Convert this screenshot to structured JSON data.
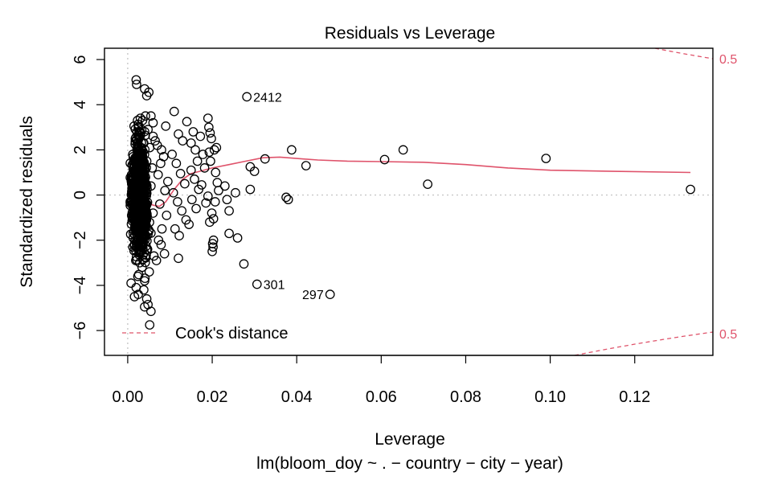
{
  "chart_data": {
    "type": "scatter",
    "title": "Residuals vs Leverage",
    "xlabel": "Leverage",
    "ylabel": "Standardized residuals",
    "subtitle": "lm(bloom_doy ~ . − country − city − year)",
    "xlim": [
      -0.0055,
      0.1385
    ],
    "ylim": [
      -7.1,
      6.5
    ],
    "x_ticks": [
      0.0,
      0.02,
      0.04,
      0.06,
      0.08,
      0.1,
      0.12
    ],
    "x_tick_labels": [
      "0.00",
      "0.02",
      "0.04",
      "0.06",
      "0.08",
      "0.10",
      "0.12"
    ],
    "y_ticks": [
      -6,
      -4,
      -2,
      0,
      2,
      4,
      6
    ],
    "y_tick_labels": [
      "−6",
      "−4",
      "−2",
      "0",
      "2",
      "4",
      "6"
    ],
    "labeled_points": [
      {
        "label": "2412",
        "x": 0.0282,
        "y": 4.35
      },
      {
        "label": "301",
        "x": 0.0306,
        "y": -3.95
      },
      {
        "label": "297",
        "x": 0.0479,
        "y": -4.4
      }
    ],
    "points": [
      [
        0.002,
        5.1
      ],
      [
        0.0021,
        4.9
      ],
      [
        0.004,
        4.7
      ],
      [
        0.0045,
        4.4
      ],
      [
        0.005,
        4.55
      ],
      [
        0.003,
        3.4
      ],
      [
        0.0035,
        3.3
      ],
      [
        0.0042,
        3.5
      ],
      [
        0.0055,
        3.5
      ],
      [
        0.006,
        3.2
      ],
      [
        0.0025,
        3.0
      ],
      [
        0.0015,
        3.05
      ],
      [
        0.0028,
        2.8
      ],
      [
        0.0048,
        2.9
      ],
      [
        0.006,
        2.6
      ],
      [
        0.0018,
        2.5
      ],
      [
        0.0038,
        2.3
      ],
      [
        0.0052,
        2.1
      ],
      [
        0.0065,
        2.4
      ],
      [
        0.0022,
        2.0
      ],
      [
        0.0012,
        1.8
      ],
      [
        0.0033,
        1.6
      ],
      [
        0.0045,
        1.5
      ],
      [
        0.0058,
        1.2
      ],
      [
        0.0014,
        1.0
      ],
      [
        0.0026,
        0.8
      ],
      [
        0.004,
        0.6
      ],
      [
        0.0055,
        0.4
      ],
      [
        0.001,
        0.3
      ],
      [
        0.003,
        0.0
      ],
      [
        0.0017,
        -0.3
      ],
      [
        0.0043,
        -0.5
      ],
      [
        0.006,
        -0.8
      ],
      [
        0.0021,
        -1.0
      ],
      [
        0.0036,
        -1.3
      ],
      [
        0.005,
        -1.6
      ],
      [
        0.0013,
        -1.9
      ],
      [
        0.0027,
        -2.1
      ],
      [
        0.0047,
        -2.4
      ],
      [
        0.0062,
        -2.7
      ],
      [
        0.0019,
        -2.9
      ],
      [
        0.0034,
        -3.2
      ],
      [
        0.0051,
        -3.4
      ],
      [
        0.0024,
        -3.6
      ],
      [
        0.004,
        -3.8
      ],
      [
        0.0008,
        -3.9
      ],
      [
        0.002,
        -4.1
      ],
      [
        0.0038,
        -4.2
      ],
      [
        0.0025,
        -4.4
      ],
      [
        0.0016,
        -4.5
      ],
      [
        0.0045,
        -4.6
      ],
      [
        0.004,
        -4.95
      ],
      [
        0.0048,
        -4.85
      ],
      [
        0.0055,
        -5.15
      ],
      [
        0.0052,
        -5.75
      ],
      [
        0.007,
        2.2
      ],
      [
        0.008,
        2.0
      ],
      [
        0.0085,
        1.7
      ],
      [
        0.009,
        3.05
      ],
      [
        0.0078,
        1.4
      ],
      [
        0.0072,
        0.9
      ],
      [
        0.0095,
        0.6
      ],
      [
        0.0088,
        0.2
      ],
      [
        0.0076,
        -0.4
      ],
      [
        0.0092,
        -0.9
      ],
      [
        0.0081,
        -1.5
      ],
      [
        0.0073,
        -2.0
      ],
      [
        0.0087,
        -2.6
      ],
      [
        0.0079,
        -2.2
      ],
      [
        0.0068,
        -2.9
      ],
      [
        0.011,
        3.7
      ],
      [
        0.012,
        2.7
      ],
      [
        0.013,
        2.4
      ],
      [
        0.014,
        3.25
      ],
      [
        0.0105,
        1.8
      ],
      [
        0.0115,
        1.4
      ],
      [
        0.0125,
        0.95
      ],
      [
        0.0135,
        0.5
      ],
      [
        0.0108,
        0.1
      ],
      [
        0.0118,
        -0.3
      ],
      [
        0.0128,
        -0.7
      ],
      [
        0.0138,
        -1.1
      ],
      [
        0.0112,
        -1.5
      ],
      [
        0.0122,
        -1.8
      ],
      [
        0.012,
        -2.8
      ],
      [
        0.0145,
        -1.3
      ],
      [
        0.015,
        2.3
      ],
      [
        0.0155,
        2.8
      ],
      [
        0.016,
        2.0
      ],
      [
        0.0165,
        1.5
      ],
      [
        0.015,
        1.1
      ],
      [
        0.0158,
        0.7
      ],
      [
        0.0168,
        0.25
      ],
      [
        0.0152,
        -0.2
      ],
      [
        0.0162,
        -0.6
      ],
      [
        0.0172,
        2.6
      ],
      [
        0.0178,
        1.8
      ],
      [
        0.0182,
        1.2
      ],
      [
        0.0175,
        0.45
      ],
      [
        0.0185,
        -0.35
      ],
      [
        0.019,
        3.4
      ],
      [
        0.0192,
        3.0
      ],
      [
        0.0195,
        2.75
      ],
      [
        0.0198,
        2.5
      ],
      [
        0.0193,
        1.9
      ],
      [
        0.0196,
        1.5
      ],
      [
        0.019,
        -0.05
      ],
      [
        0.0194,
        -1.2
      ],
      [
        0.0199,
        -0.8
      ],
      [
        0.02,
        -2.5
      ],
      [
        0.0202,
        -2.3
      ],
      [
        0.0203,
        -2.0
      ],
      [
        0.0201,
        -2.15
      ],
      [
        0.0205,
        2.0
      ],
      [
        0.021,
        2.1
      ],
      [
        0.0208,
        1.0
      ],
      [
        0.0212,
        0.55
      ],
      [
        0.0215,
        0.2
      ],
      [
        0.0207,
        -0.3
      ],
      [
        0.0203,
        -1.05
      ],
      [
        0.023,
        0.4
      ],
      [
        0.024,
        -0.7
      ],
      [
        0.0235,
        -0.2
      ],
      [
        0.024,
        -1.7
      ],
      [
        0.0255,
        0.1
      ],
      [
        0.026,
        -1.9
      ],
      [
        0.0275,
        -3.05
      ],
      [
        0.029,
        1.25
      ],
      [
        0.03,
        1.05
      ],
      [
        0.029,
        0.25
      ],
      [
        0.0325,
        1.6
      ],
      [
        0.0375,
        -0.1
      ],
      [
        0.038,
        -0.2
      ],
      [
        0.0388,
        2.0
      ],
      [
        0.0422,
        1.3
      ],
      [
        0.0608,
        1.57
      ],
      [
        0.0652,
        2.0
      ],
      [
        0.071,
        0.48
      ],
      [
        0.099,
        1.62
      ],
      [
        0.1332,
        0.25
      ]
    ],
    "dense_cluster": {
      "x_center": 0.0028,
      "x_spread": 0.0022,
      "y_center": -0.1,
      "y_spread": 1.6,
      "count": 900
    },
    "smooth_line": {
      "color": "#df536b",
      "x": [
        0.0,
        0.0015,
        0.003,
        0.0045,
        0.006,
        0.0075,
        0.009,
        0.011,
        0.013,
        0.015,
        0.017,
        0.02,
        0.024,
        0.028,
        0.032,
        0.036,
        0.04,
        0.045,
        0.052,
        0.06,
        0.07,
        0.08,
        0.09,
        0.1,
        0.115,
        0.1332
      ],
      "y": [
        0.15,
        0.05,
        -0.1,
        -0.3,
        -0.45,
        -0.5,
        -0.3,
        0.25,
        0.7,
        0.95,
        1.05,
        1.2,
        1.35,
        1.5,
        1.65,
        1.68,
        1.62,
        1.55,
        1.5,
        1.48,
        1.45,
        1.35,
        1.2,
        1.1,
        1.05,
        1.0
      ]
    },
    "cooks_distance": {
      "legend_label": "Cook's distance",
      "contour_label_top": "0.5",
      "contour_label_bottom": "0.5",
      "color": "#df536b"
    },
    "grid": false,
    "reference_line_color": "#bebebe"
  }
}
